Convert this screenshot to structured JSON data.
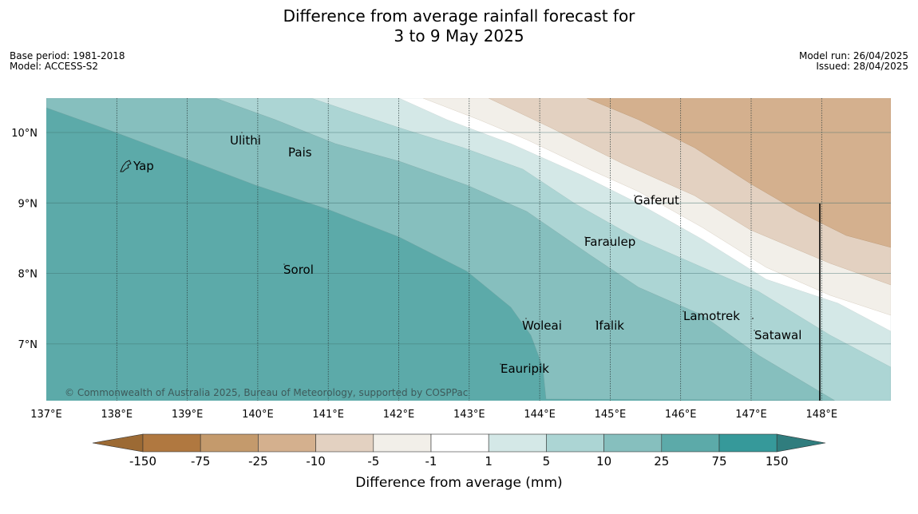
{
  "title": {
    "line1": "Difference from average rainfall forecast for",
    "line2": "3 to 9 May 2025"
  },
  "info_left": {
    "base_period": "Base period: 1981-2018",
    "model": "Model: ACCESS-S2"
  },
  "info_right": {
    "model_run": "Model run: 26/04/2025",
    "issued": "Issued: 28/04/2025"
  },
  "copyright": "© Commonwealth of Australia 2025, Bureau of Meteorology, supported by COSPPac",
  "longitude_labels": [
    "137°E",
    "138°E",
    "139°E",
    "140°E",
    "141°E",
    "142°E",
    "143°E",
    "144°E",
    "145°E",
    "146°E",
    "147°E",
    "148°E"
  ],
  "latitude_labels": [
    "10°N",
    "9°N",
    "8°N",
    "7°N"
  ],
  "places": [
    {
      "name": "Ulithi"
    },
    {
      "name": "Pais"
    },
    {
      "name": "Yap"
    },
    {
      "name": "Gaferut"
    },
    {
      "name": "Faraulep"
    },
    {
      "name": "Sorol"
    },
    {
      "name": "Lamotrek"
    },
    {
      "name": "Woleai"
    },
    {
      "name": "Ifalik"
    },
    {
      "name": "Satawal"
    },
    {
      "name": "Eauripik"
    }
  ],
  "colorbar": {
    "label": "Difference from average (mm)",
    "ticks": [
      "-150",
      "-75",
      "-25",
      "-10",
      "-5",
      "-1",
      "1",
      "5",
      "10",
      "25",
      "75",
      "150"
    ],
    "colors": [
      "#9c6a34",
      "#b07840",
      "#c49a6c",
      "#d4b08e",
      "#e3d1c1",
      "#f2efe9",
      "#ffffff",
      "#d4e8e7",
      "#acd5d4",
      "#86bfbe",
      "#5caaa9",
      "#36999a",
      "#307d7e"
    ]
  }
}
